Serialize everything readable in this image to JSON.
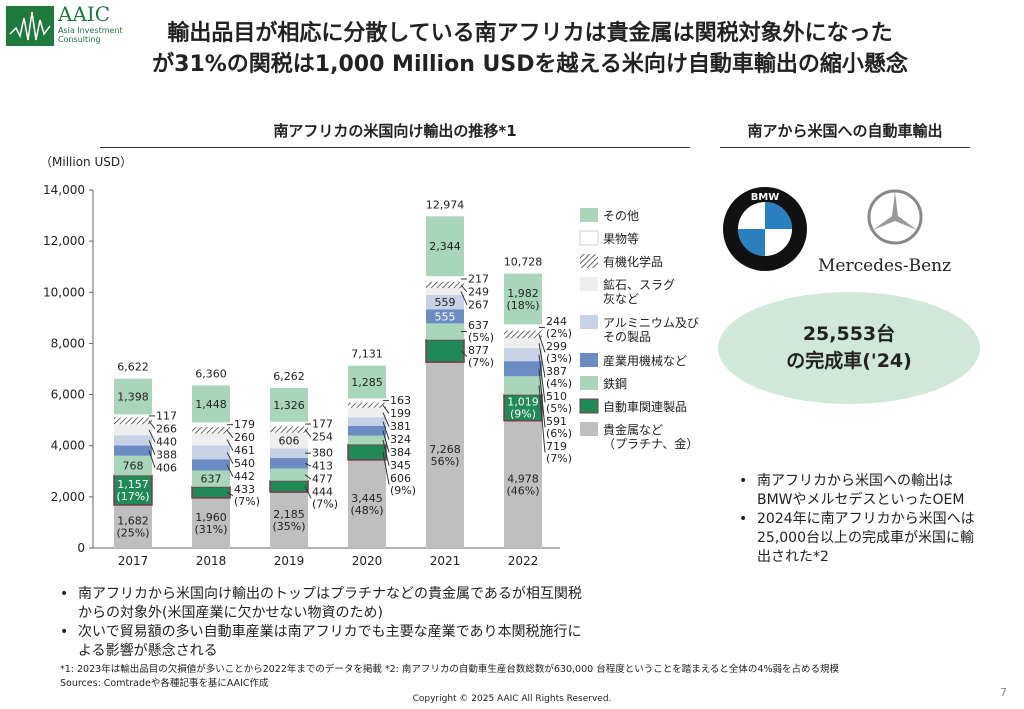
{
  "header": {
    "logo_text": "AAIC",
    "logo_sub": "Asia Investment Consulting",
    "title_line1": "輸出品目が相応に分散している南アフリカは貴金属は関税対象外になった",
    "title_line2": "が31%の関税は1,000 Million USDを越える米向け自動車輸出の縮小懸念"
  },
  "left": {
    "section_title": "南アフリカの米国向け輸出の推移*1",
    "unit": "（Million USD）",
    "bullets": [
      "南アフリカから米国向け輸出のトップはプラチナなどの貴金属であるが相互関税からの対象外(米国産業に欠かせない物資のため)",
      "次いで貿易額の多い自動車産業は南アフリカでも主要な産業であり本関税施行による影響が懸念される"
    ]
  },
  "right": {
    "section_title": "南アから米国への自動車輸出",
    "bmw_logo": "BMW",
    "mercedes_text": "Mercedes-Benz",
    "highlight_line1": "25,553台",
    "highlight_line2": "の完成車('24)",
    "bullets": [
      "南アフリカから米国への輸出はBMWやメルセデスといったOEM",
      "2024年に南アフリカから米国へは25,000台以上の完成車が米国に輸出された*2"
    ]
  },
  "footer": {
    "note": "*1: 2023年は輸出品目の欠損値が多いことから2022年までのデータを掲載 *2: 南アフリカの自動車生産台数総数が630,000 台程度ということを踏まえると全体の4%弱を占める規模",
    "sources": "Sources: Comtradeや各種記事を基にAAIC作成",
    "copyright": "Copyright © 2025 AAIC All Rights Reserved.",
    "page": "7"
  },
  "chart_data": {
    "type": "bar",
    "stacked": true,
    "ylabel": "（Million USD）",
    "ylim": [
      0,
      14000
    ],
    "yticks": [
      "0",
      "2,000",
      "4,000",
      "6,000",
      "8,000",
      "10,000",
      "12,000",
      "14,000"
    ],
    "categories": [
      "2017",
      "2018",
      "2019",
      "2020",
      "2021",
      "2022"
    ],
    "totals": [
      "6,622",
      "6,360",
      "6,262",
      "7,131",
      "12,974",
      "10,728"
    ],
    "legend_position": "right",
    "series": [
      {
        "name": "貴金属など\n（プラチナ、金）",
        "color": "#bfbfbf",
        "values": [
          1682,
          1960,
          2185,
          3445,
          7268,
          4978
        ],
        "labels": [
          "1,682\n(25%)",
          "1,960\n(31%)",
          "2,185\n(35%)",
          "3,445\n(48%)",
          "7,268\n56%)",
          "4,978\n(46%)"
        ]
      },
      {
        "name": "自動車関連製品",
        "color": "#1f8a55",
        "values": [
          1157,
          433,
          444,
          606,
          877,
          1019
        ],
        "labels": [
          "1,157\n(17%)",
          "433\n(7%)",
          "444\n(7%)",
          "606\n(9%)",
          "877\n(7%)",
          "1,019\n(9%)"
        ]
      },
      {
        "name": "鉄鋼",
        "color": "#a9d6bb",
        "values": [
          768,
          637,
          477,
          345,
          637,
          719
        ],
        "labels": [
          "768",
          "637",
          "477",
          "345",
          "637\n(5%)",
          "719\n(7%)"
        ]
      },
      {
        "name": "産業用機械など",
        "color": "#6a8cc2",
        "values": [
          406,
          442,
          413,
          384,
          555,
          591
        ],
        "labels": [
          "406",
          "442",
          "413",
          "384",
          "555",
          "591\n(6%)"
        ]
      },
      {
        "name": "アルミニウム及び\nその製品",
        "color": "#c7d2e6",
        "values": [
          388,
          540,
          380,
          324,
          559,
          510
        ],
        "labels": [
          "388",
          "540",
          "380",
          "324",
          "559",
          "510\n(5%)"
        ]
      },
      {
        "name": "鉱石、スラグ\n灰など",
        "color": "#eeeeee",
        "values": [
          440,
          461,
          606,
          381,
          267,
          387
        ],
        "labels": [
          "440",
          "461",
          "606",
          "381",
          "267",
          "387\n(4%)"
        ]
      },
      {
        "name": "有機化学品",
        "color": "hatch",
        "values": [
          266,
          260,
          254,
          199,
          249,
          299
        ],
        "labels": [
          "266",
          "260",
          "254",
          "199",
          "249",
          "299\n(3%)"
        ]
      },
      {
        "name": "果物等",
        "color": "#ffffff",
        "values": [
          117,
          179,
          177,
          163,
          217,
          244
        ],
        "labels": [
          "117",
          "179",
          "177",
          "163",
          "217",
          "244\n(2%)"
        ]
      },
      {
        "name": "その他",
        "color": "#a9d6bb",
        "values": [
          1398,
          1448,
          1326,
          1285,
          2344,
          1982
        ],
        "labels": [
          "1,398",
          "1,448",
          "1,326",
          "1,285",
          "2,344",
          "1,982\n(18%)"
        ]
      }
    ]
  }
}
